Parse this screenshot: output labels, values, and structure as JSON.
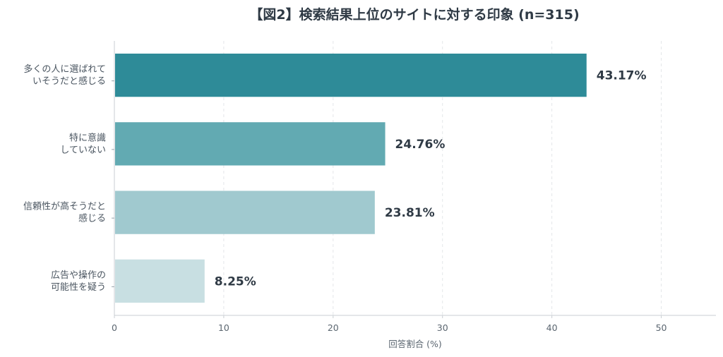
{
  "chart_data": {
    "type": "bar",
    "orientation": "horizontal",
    "title": "【図2】検索結果上位のサイトに対する印象 (n=315)",
    "xlabel": "回答割合 (%)",
    "ylabel": "",
    "xlim": [
      0,
      55
    ],
    "xticks": [
      0,
      10,
      20,
      30,
      40,
      50
    ],
    "grid": "vertical-dashed",
    "categories": [
      [
        "多くの人に選ばれて",
        "いそうだと感じる"
      ],
      [
        "特に意識",
        "していない"
      ],
      [
        "信頼性が高そうだと",
        "感じる"
      ],
      [
        "広告や操作の",
        "可能性を疑う"
      ]
    ],
    "values": [
      43.17,
      24.76,
      23.81,
      8.25
    ],
    "value_labels": [
      "43.17%",
      "24.76%",
      "23.81%",
      "8.25%"
    ],
    "colors": [
      "#2e8b98",
      "#62aab2",
      "#a0c9cf",
      "#c8dfe2"
    ]
  }
}
